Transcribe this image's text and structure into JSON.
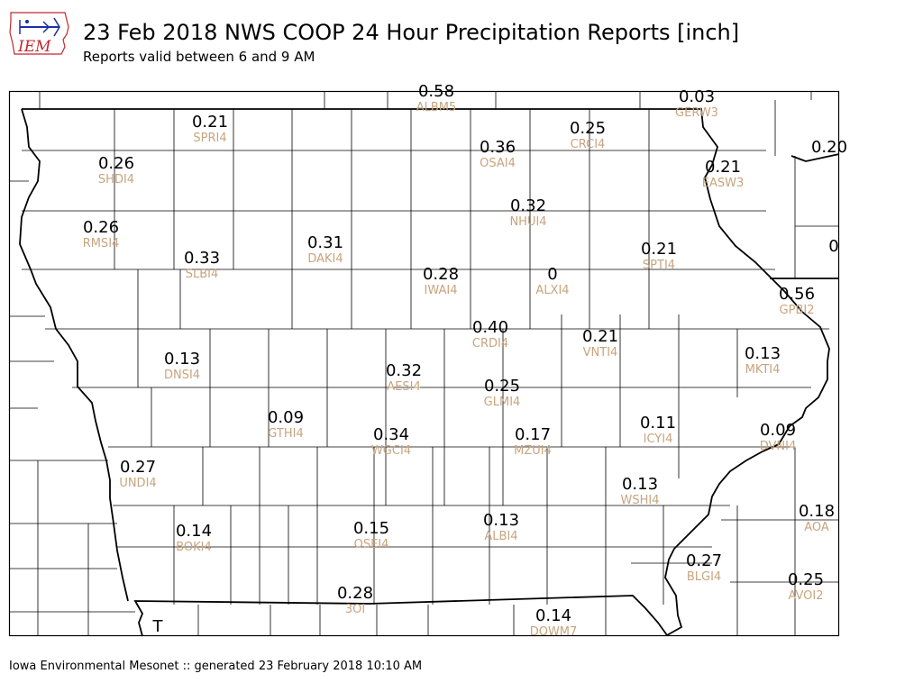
{
  "header": {
    "title": "23 Feb 2018 NWS COOP 24 Hour Precipitation Reports [inch]",
    "subtitle": "Reports valid between 6 and 9 AM",
    "logo_text": "IEM"
  },
  "footer": {
    "text": "Iowa Environmental Mesonet :: generated 23 February 2018 10:10 AM"
  },
  "colors": {
    "value_text": "#000000",
    "station_text": "#c8a47e",
    "logo_blue": "#1a2ea8",
    "logo_red": "#c0272d"
  },
  "stations": [
    {
      "value": "0.58",
      "id": "ALBM5"
    },
    {
      "value": "0.03",
      "id": "GERW3"
    },
    {
      "value": "0.21",
      "id": "SPRI4"
    },
    {
      "value": "0.25",
      "id": "CRCI4"
    },
    {
      "value": "0.36",
      "id": "OSAI4"
    },
    {
      "value": "0.20",
      "id": ""
    },
    {
      "value": "0.26",
      "id": "SHDI4"
    },
    {
      "value": "0.21",
      "id": "EASW3"
    },
    {
      "value": "0.32",
      "id": "NHUI4"
    },
    {
      "value": "0.26",
      "id": "RMSI4"
    },
    {
      "value": "0.31",
      "id": "DAKI4"
    },
    {
      "value": "0.21",
      "id": "SPTI4"
    },
    {
      "value": "0",
      "id": ""
    },
    {
      "value": "0.33",
      "id": "SLBI4"
    },
    {
      "value": "0.28",
      "id": "IWAI4"
    },
    {
      "value": "0",
      "id": "ALXI4"
    },
    {
      "value": "0.56",
      "id": "GPBI2"
    },
    {
      "value": "0.40",
      "id": "CRDI4"
    },
    {
      "value": "0.21",
      "id": "VNTI4"
    },
    {
      "value": "0.13",
      "id": "DNSI4"
    },
    {
      "value": "0.13",
      "id": "MKTI4"
    },
    {
      "value": "0.32",
      "id": "AESI4"
    },
    {
      "value": "0.25",
      "id": "GLMI4"
    },
    {
      "value": "0.09",
      "id": "GTHI4"
    },
    {
      "value": "0.11",
      "id": "ICYI4"
    },
    {
      "value": "0.34",
      "id": "WGCI4"
    },
    {
      "value": "0.17",
      "id": "MZUI4"
    },
    {
      "value": "0.09",
      "id": "DVNI4"
    },
    {
      "value": "0.27",
      "id": "UNDI4"
    },
    {
      "value": "0.13",
      "id": "WSHI4"
    },
    {
      "value": "0.18",
      "id": "AOA"
    },
    {
      "value": "0.14",
      "id": "BOKI4"
    },
    {
      "value": "0.15",
      "id": "OSEI4"
    },
    {
      "value": "0.13",
      "id": "ALBI4"
    },
    {
      "value": "0.27",
      "id": "BLGI4"
    },
    {
      "value": "0.25",
      "id": "AVOI2"
    },
    {
      "value": "0.28",
      "id": "3OI"
    },
    {
      "value": "0.14",
      "id": "DOWM7"
    },
    {
      "value": "T",
      "id": ""
    }
  ]
}
